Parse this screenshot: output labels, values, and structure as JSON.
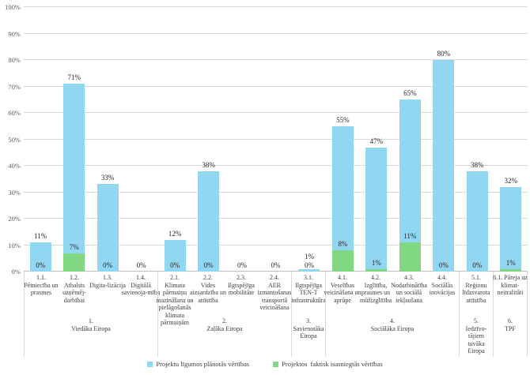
{
  "chart_data": {
    "type": "bar",
    "title": "",
    "xlabel": "",
    "ylabel": "",
    "ylim": [
      0,
      100
    ],
    "grid": true,
    "legend_position": "bottom",
    "y_tick_labels": [
      "0%",
      "10%",
      "20%",
      "30%",
      "40%",
      "50%",
      "60%",
      "70%",
      "80%",
      "90%",
      "100%"
    ],
    "series": [
      {
        "id": "planned",
        "name": "Projektu līgumos plānotās vērtības",
        "color": "#92D7F2",
        "values": [
          11,
          71,
          33,
          0,
          12,
          38,
          0,
          0,
          1,
          55,
          47,
          65,
          80,
          38,
          32
        ]
      },
      {
        "id": "actual",
        "name": "Projektos  faktisk isasniegtās vērtības",
        "color": "#82D882",
        "values": [
          0,
          7,
          0,
          0,
          0,
          0,
          0,
          0,
          0,
          8,
          1,
          11,
          0,
          0,
          1
        ]
      }
    ],
    "categories": [
      {
        "num": "1.1.",
        "label": "Pētniecība un prasmes"
      },
      {
        "num": "1.2.",
        "label": "Atbalsts uzņēmēj-darbībai"
      },
      {
        "num": "1.3.",
        "label": "Digita-lizācija"
      },
      {
        "num": "1.4.",
        "label": "Digitālā savienoja-mība"
      },
      {
        "num": "2.1.",
        "label": "Klimata pārmaiņu mazināšana un pielāgošanās klimata pārmaiņām"
      },
      {
        "num": "2.2.",
        "label": "Vides aizsardzība un attīstība"
      },
      {
        "num": "2.3.",
        "label": "Ilgtspējīga mobilitāte"
      },
      {
        "num": "2.4.",
        "label": "AER izmantošanas transportā veicināšana"
      },
      {
        "num": "3.1.",
        "label": "Ilgtspējīga TEN-T infrastruktūra"
      },
      {
        "num": "4.1.",
        "label": "Veselības veicināšana un aprūpe"
      },
      {
        "num": "4.2.",
        "label": "Izglītība, prasmes un mūžizglītība"
      },
      {
        "num": "4.3.",
        "label": "Nodarbinātība un sociālā iekļaušana"
      },
      {
        "num": "4.4.",
        "label": "Sociālās inovācijas"
      },
      {
        "num": "5.1.",
        "label": "Reģionu līdzsvarota attīstība"
      },
      {
        "num": "",
        "label": "6.1. Pāreja uz klimat-neitralitāti"
      }
    ],
    "groups": [
      {
        "num": "1.",
        "name": "Viedāka Eiropa",
        "span": 4
      },
      {
        "num": "2.",
        "name": "Zaļāka Eiropa",
        "span": 4
      },
      {
        "num": "3.",
        "name": "Savienotāka Eiropa",
        "span": 1
      },
      {
        "num": "4.",
        "name": "Sociālāka Eiropa",
        "span": 4
      },
      {
        "num": "5.",
        "name": "Iedzīvo-tājiem tuvāka Eiropa",
        "span": 1
      },
      {
        "num": "6.",
        "name": "TPF",
        "span": 1
      }
    ],
    "colors": {
      "gridline": "#D9D9D9",
      "axis_line": "#BFBFBF",
      "label_text": "#3D3D3D"
    }
  }
}
